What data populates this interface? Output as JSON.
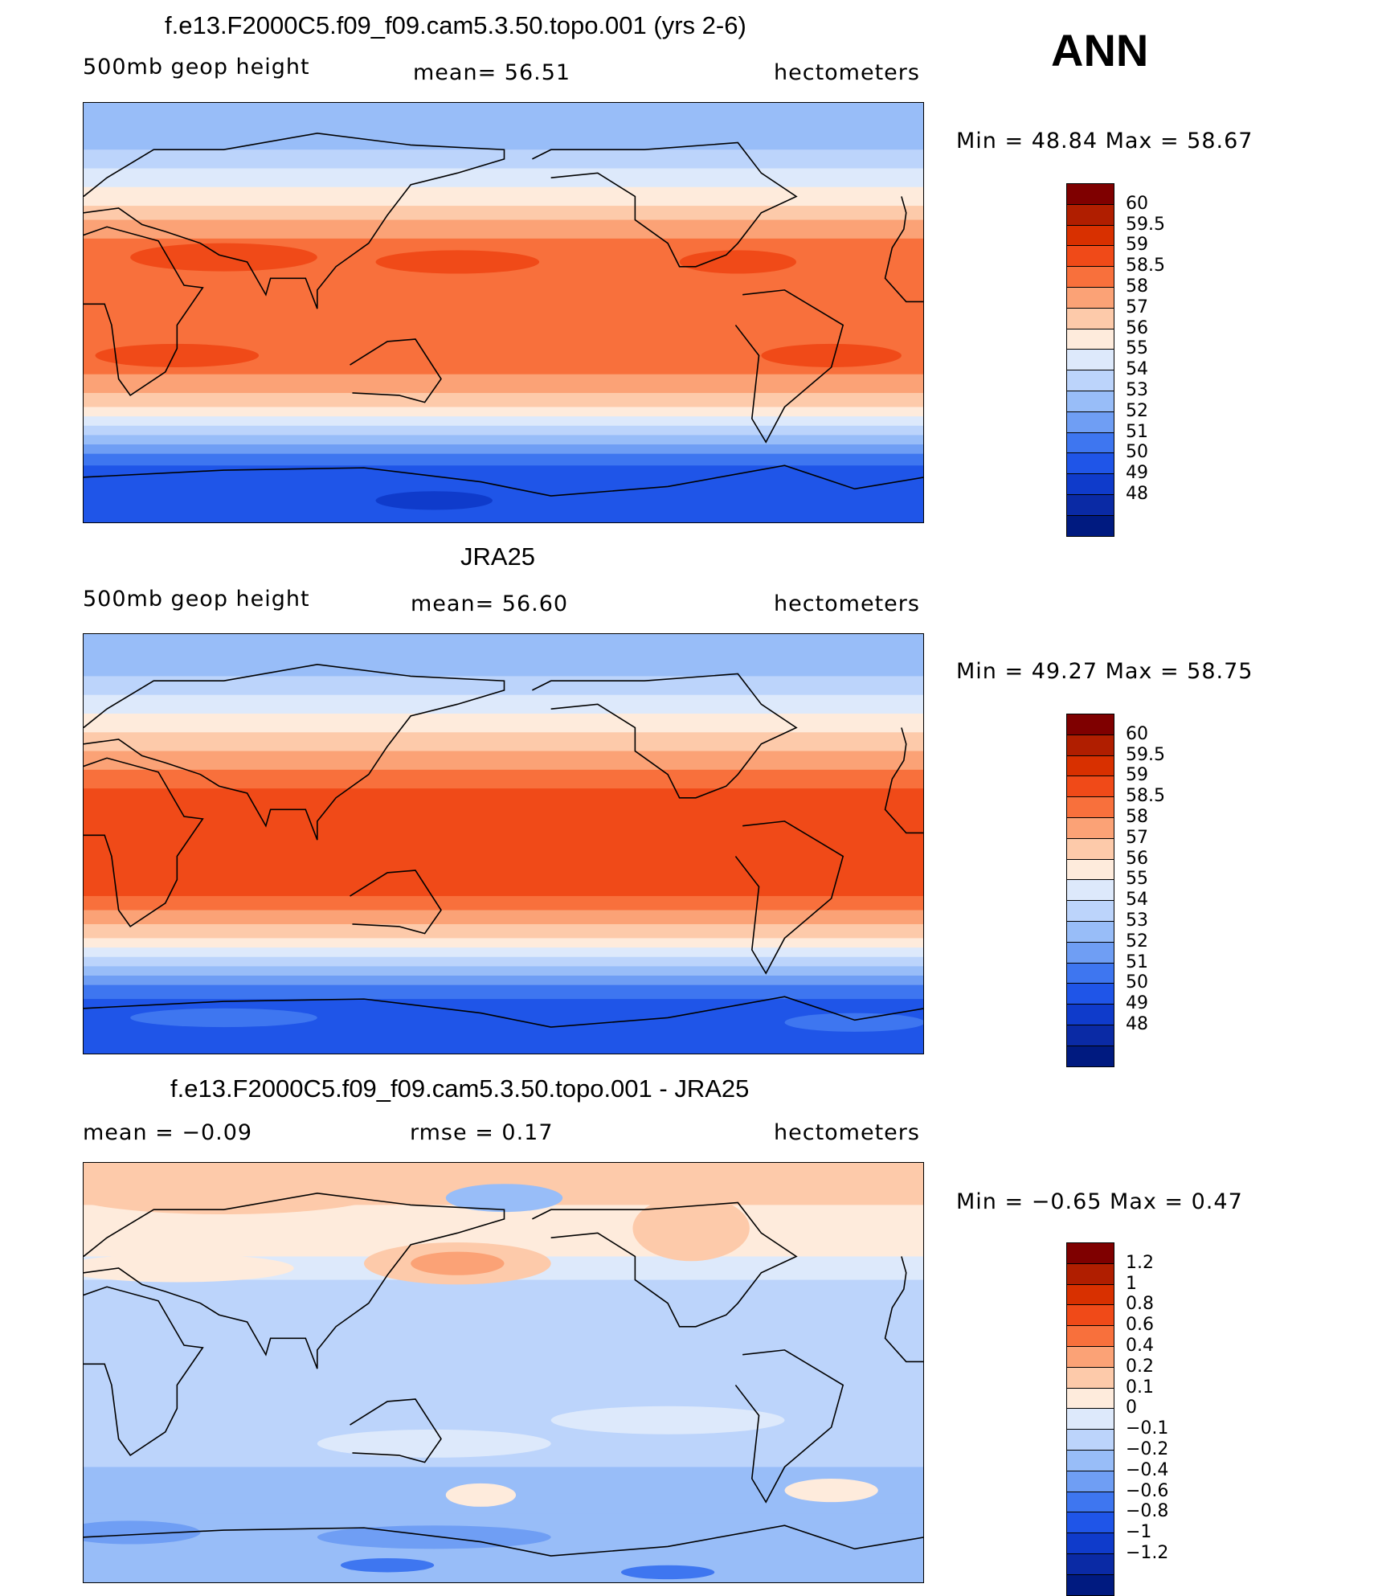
{
  "season": "ANN",
  "panels": [
    {
      "id": "model",
      "title": "f.e13.F2000C5.f09_f09.cam5.3.50.topo.001 (yrs 2-6)",
      "left_label": "500mb  geop  height",
      "center_label": "mean=   56.51",
      "right_label": "hectometers",
      "minmax": "Min  =    48.84  Max  =    58.67",
      "colorbar": {
        "labels": [
          "60",
          "59.5",
          "59",
          "58.5",
          "58",
          "57",
          "56",
          "55",
          "54",
          "53",
          "52",
          "51",
          "50",
          "49",
          "48"
        ],
        "colors": [
          "#7f0000",
          "#b01e00",
          "#d83000",
          "#f04a18",
          "#f8703c",
          "#fba276",
          "#fdcaaa",
          "#feebdc",
          "#dde9fb",
          "#bcd4fb",
          "#98bdf8",
          "#6f9ef4",
          "#3e76f0",
          "#1f55e8",
          "#0f3bcb",
          "#0a2aa5",
          "#001a80"
        ]
      },
      "map_data": {
        "bands": [
          {
            "lat_north": 90,
            "lat_south": 70,
            "value": 52.5
          },
          {
            "lat_north": 70,
            "lat_south": 62,
            "value": 53.5
          },
          {
            "lat_north": 62,
            "lat_south": 54,
            "value": 54.5
          },
          {
            "lat_north": 54,
            "lat_south": 46,
            "value": 55.5
          },
          {
            "lat_north": 46,
            "lat_south": 40,
            "value": 56.5
          },
          {
            "lat_north": 40,
            "lat_south": 32,
            "value": 57.5
          },
          {
            "lat_north": 32,
            "lat_south": 18,
            "value": 58.2
          },
          {
            "lat_north": 18,
            "lat_south": -10,
            "value": 58.2
          },
          {
            "lat_north": -10,
            "lat_south": -26,
            "value": 58.2
          },
          {
            "lat_north": -26,
            "lat_south": -34,
            "value": 57.5
          },
          {
            "lat_north": -34,
            "lat_south": -40,
            "value": 56.5
          },
          {
            "lat_north": -40,
            "lat_south": -44,
            "value": 55.5
          },
          {
            "lat_north": -44,
            "lat_south": -48,
            "value": 54.5
          },
          {
            "lat_north": -48,
            "lat_south": -52,
            "value": 53.5
          },
          {
            "lat_north": -52,
            "lat_south": -56,
            "value": 52.5
          },
          {
            "lat_north": -56,
            "lat_south": -60,
            "value": 51.5
          },
          {
            "lat_north": -60,
            "lat_south": -65,
            "value": 50.5
          },
          {
            "lat_north": -65,
            "lat_south": -90,
            "value": 49.5
          }
        ],
        "blobs": [
          {
            "lon": 60,
            "lat": 24,
            "rlon": 40,
            "rlat": 6,
            "value": 58.7
          },
          {
            "lon": 160,
            "lat": 22,
            "rlon": 35,
            "rlat": 5,
            "value": 58.7
          },
          {
            "lon": 280,
            "lat": 22,
            "rlon": 25,
            "rlat": 5,
            "value": 58.7
          },
          {
            "lon": 40,
            "lat": -18,
            "rlon": 35,
            "rlat": 5,
            "value": 58.7
          },
          {
            "lon": 320,
            "lat": -18,
            "rlon": 30,
            "rlat": 5,
            "value": 58.7
          },
          {
            "lon": 150,
            "lat": -80,
            "rlon": 25,
            "rlat": 4,
            "value": 48.5
          }
        ]
      }
    },
    {
      "id": "obs",
      "title": "JRA25",
      "left_label": "500mb  geop  height",
      "center_label": "mean=   56.60",
      "right_label": "hectometers",
      "minmax": "Min  =    49.27  Max  =    58.75",
      "colorbar": {
        "labels": [
          "60",
          "59.5",
          "59",
          "58.5",
          "58",
          "57",
          "56",
          "55",
          "54",
          "53",
          "52",
          "51",
          "50",
          "49",
          "48"
        ],
        "colors": [
          "#7f0000",
          "#b01e00",
          "#d83000",
          "#f04a18",
          "#f8703c",
          "#fba276",
          "#fdcaaa",
          "#feebdc",
          "#dde9fb",
          "#bcd4fb",
          "#98bdf8",
          "#6f9ef4",
          "#3e76f0",
          "#1f55e8",
          "#0f3bcb",
          "#0a2aa5",
          "#001a80"
        ]
      },
      "map_data": {
        "bands": [
          {
            "lat_north": 90,
            "lat_south": 72,
            "value": 52.5
          },
          {
            "lat_north": 72,
            "lat_south": 64,
            "value": 53.5
          },
          {
            "lat_north": 64,
            "lat_south": 56,
            "value": 54.5
          },
          {
            "lat_north": 56,
            "lat_south": 48,
            "value": 55.5
          },
          {
            "lat_north": 48,
            "lat_south": 40,
            "value": 56.5
          },
          {
            "lat_north": 40,
            "lat_south": 32,
            "value": 57.5
          },
          {
            "lat_north": 32,
            "lat_south": 24,
            "value": 58.2
          },
          {
            "lat_north": 24,
            "lat_south": -22,
            "value": 58.7
          },
          {
            "lat_north": -22,
            "lat_south": -28,
            "value": 58.2
          },
          {
            "lat_north": -28,
            "lat_south": -34,
            "value": 57.5
          },
          {
            "lat_north": -34,
            "lat_south": -40,
            "value": 56.5
          },
          {
            "lat_north": -40,
            "lat_south": -44,
            "value": 55.5
          },
          {
            "lat_north": -44,
            "lat_south": -48,
            "value": 54.5
          },
          {
            "lat_north": -48,
            "lat_south": -52,
            "value": 53.5
          },
          {
            "lat_north": -52,
            "lat_south": -56,
            "value": 52.5
          },
          {
            "lat_north": -56,
            "lat_south": -60,
            "value": 51.5
          },
          {
            "lat_north": -60,
            "lat_south": -66,
            "value": 50.5
          },
          {
            "lat_north": -66,
            "lat_south": -90,
            "value": 49.5
          }
        ],
        "blobs": [
          {
            "lon": 60,
            "lat": -74,
            "rlon": 40,
            "rlat": 4,
            "value": 50.5
          },
          {
            "lon": 330,
            "lat": -76,
            "rlon": 30,
            "rlat": 4,
            "value": 50.5
          }
        ]
      }
    },
    {
      "id": "diff",
      "title": "f.e13.F2000C5.f09_f09.cam5.3.50.topo.001 - JRA25",
      "left_label": "mean  =    −0.09",
      "center_label": "rmse  =     0.17",
      "right_label": "hectometers",
      "minmax": "Min  =    −0.65  Max  =      0.47",
      "colorbar": {
        "labels": [
          "1.2",
          "1",
          "0.8",
          "0.6",
          "0.4",
          "0.2",
          "0.1",
          "0",
          "−0.1",
          "−0.2",
          "−0.4",
          "−0.6",
          "−0.8",
          "−1",
          "−1.2"
        ],
        "colors": [
          "#7f0000",
          "#b01e00",
          "#d83000",
          "#f04a18",
          "#f8703c",
          "#fba276",
          "#fdcaaa",
          "#feebdc",
          "#dde9fb",
          "#bcd4fb",
          "#98bdf8",
          "#6f9ef4",
          "#3e76f0",
          "#1f55e8",
          "#0f3bcb",
          "#0a2aa5",
          "#001a80"
        ]
      },
      "map_data": {
        "bands": [
          {
            "lat_north": 90,
            "lat_south": 72,
            "value": 0.15
          },
          {
            "lat_north": 72,
            "lat_south": 50,
            "value": 0.05
          },
          {
            "lat_north": 50,
            "lat_south": 40,
            "value": -0.05
          },
          {
            "lat_north": 40,
            "lat_south": -40,
            "value": -0.15
          },
          {
            "lat_north": -40,
            "lat_south": -60,
            "value": -0.3
          },
          {
            "lat_north": -60,
            "lat_south": -90,
            "value": -0.3
          }
        ],
        "blobs": [
          {
            "lon": 60,
            "lat": 78,
            "rlon": 70,
            "rlat": 10,
            "value": 0.15
          },
          {
            "lon": 180,
            "lat": 75,
            "rlon": 25,
            "rlat": 6,
            "value": -0.3
          },
          {
            "lon": 260,
            "lat": 62,
            "rlon": 25,
            "rlat": 14,
            "value": 0.15
          },
          {
            "lon": 160,
            "lat": 47,
            "rlon": 40,
            "rlat": 9,
            "value": 0.15
          },
          {
            "lon": 160,
            "lat": 47,
            "rlon": 20,
            "rlat": 5,
            "value": 0.3
          },
          {
            "lon": 40,
            "lat": 45,
            "rlon": 50,
            "rlat": 6,
            "value": 0.05
          },
          {
            "lon": 60,
            "lat": -10,
            "rlon": 30,
            "rlat": 10,
            "value": -0.15
          },
          {
            "lon": 150,
            "lat": -30,
            "rlon": 50,
            "rlat": 6,
            "value": -0.05
          },
          {
            "lon": 250,
            "lat": -20,
            "rlon": 50,
            "rlat": 6,
            "value": -0.05
          },
          {
            "lon": 170,
            "lat": -52,
            "rlon": 15,
            "rlat": 5,
            "value": 0.05
          },
          {
            "lon": 320,
            "lat": -50,
            "rlon": 20,
            "rlat": 5,
            "value": 0.05
          },
          {
            "lon": 20,
            "lat": -68,
            "rlon": 30,
            "rlat": 5,
            "value": -0.5
          },
          {
            "lon": 150,
            "lat": -70,
            "rlon": 50,
            "rlat": 5,
            "value": -0.5
          },
          {
            "lon": 130,
            "lat": -82,
            "rlon": 20,
            "rlat": 3,
            "value": -0.7
          },
          {
            "lon": 250,
            "lat": -85,
            "rlon": 20,
            "rlat": 3,
            "value": -0.7
          }
        ]
      }
    }
  ]
}
